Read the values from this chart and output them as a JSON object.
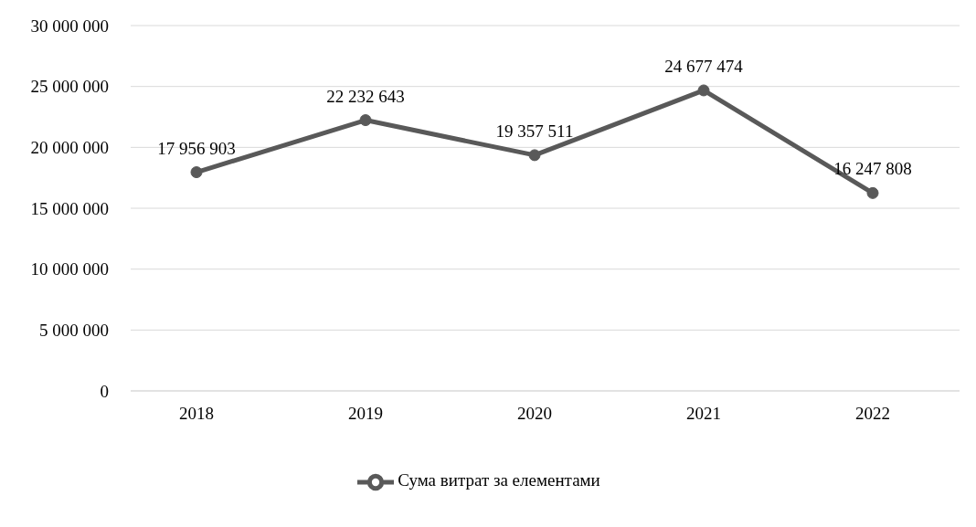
{
  "chart_data": {
    "type": "line",
    "categories": [
      "2018",
      "2019",
      "2020",
      "2021",
      "2022"
    ],
    "series": [
      {
        "name": "Сума витрат за елементами",
        "color": "#595959",
        "values": [
          17956903,
          22232643,
          19357511,
          24677474,
          16247808
        ],
        "value_labels": [
          "17 956 903",
          "22 232 643",
          "19 357 511",
          "24 677 474",
          "16 247 808"
        ]
      }
    ],
    "ylim": [
      0,
      30000000
    ],
    "yticks": [
      {
        "value": 0,
        "label": "0"
      },
      {
        "value": 5000000,
        "label": "5 000 000"
      },
      {
        "value": 10000000,
        "label": "10 000 000"
      },
      {
        "value": 15000000,
        "label": "15 000 000"
      },
      {
        "value": 20000000,
        "label": "20 000 000"
      },
      {
        "value": 25000000,
        "label": "25 000 000"
      },
      {
        "value": 30000000,
        "label": "30 000 000"
      }
    ],
    "grid": "y",
    "legend": "bottom",
    "marker": "circle",
    "line_style": "solid"
  }
}
